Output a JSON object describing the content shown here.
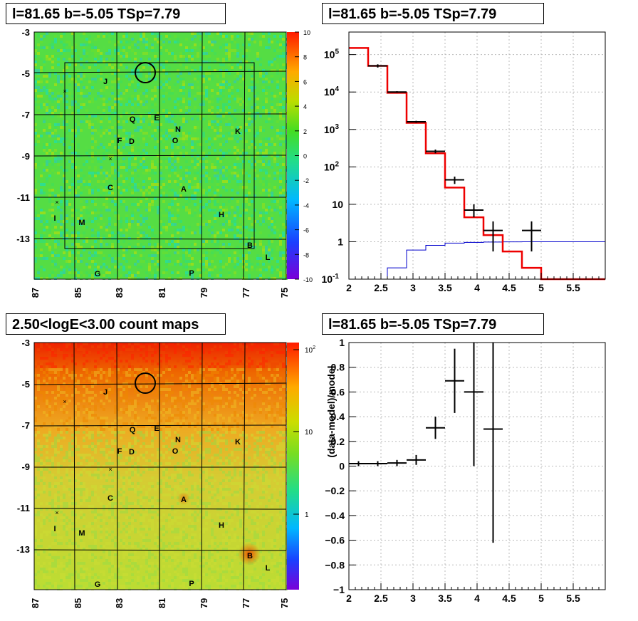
{
  "panels": {
    "tl_title": "l=81.65 b=-5.05 TSp=7.79",
    "tr_title": "l=81.65 b=-5.05 TSp=7.79",
    "bl_title": "2.50<logE<3.00 count maps",
    "br_title": "l=81.65 b=-5.05 TSp=7.79",
    "br_ylabel": "(data-model)/model"
  },
  "chart_data": [
    {
      "type": "heatmap",
      "title": "l=81.65 b=-5.05 TSp=7.79",
      "x_ticks": [
        "87",
        "85",
        "83",
        "81",
        "79",
        "77",
        "75"
      ],
      "y_ticks": [
        "-3",
        "-5",
        "-7",
        "-9",
        "-11",
        "-13"
      ],
      "xlim": [
        87,
        75
      ],
      "ylim": [
        -3,
        -15
      ],
      "colorbar_ticks": [
        "10",
        "8",
        "6",
        "4",
        "2",
        "0",
        "-2",
        "-4",
        "-6",
        "-8",
        "-10"
      ],
      "zlim": [
        -10,
        10
      ],
      "sources": [
        "J",
        "Q",
        "E",
        "N",
        "K",
        "F",
        "D",
        "O",
        "C",
        "A",
        "H",
        "I",
        "M",
        "B",
        "L",
        "G",
        "P"
      ],
      "colors": {
        "background": "#55dd44",
        "colormap": "rainbow"
      }
    },
    {
      "type": "line",
      "title": "l=81.65 b=-5.05 TSp=7.79",
      "yscale": "log",
      "xlim": [
        2,
        6
      ],
      "ylim": [
        0.1,
        400000
      ],
      "x_ticks": [
        "2",
        "2.5",
        "3",
        "3.5",
        "4",
        "4.5",
        "5",
        "5.5"
      ],
      "y_ticks": [
        "10^-1",
        "1",
        "10",
        "10^2",
        "10^3",
        "10^4",
        "10^5"
      ],
      "series": [
        {
          "color": "#ee0000",
          "bin_edges": [
            2,
            2.3,
            2.6,
            2.9,
            3.2,
            3.5,
            3.8,
            4.1,
            4.4,
            4.7,
            5.0,
            5.3,
            5.6,
            6.0
          ],
          "values": [
            150000,
            50000,
            9500,
            1500,
            230,
            28,
            4.5,
            1.5,
            0.55,
            0.2,
            0.1,
            0.1,
            0.1
          ]
        },
        {
          "color": "#0000cc",
          "bin_edges": [
            2,
            2.3,
            2.6,
            2.9,
            3.2,
            3.5,
            3.8,
            4.1,
            4.4,
            4.7,
            5.0,
            5.3,
            5.6,
            6.0
          ],
          "values": [
            0.01,
            0.01,
            0.2,
            0.6,
            0.8,
            0.92,
            0.96,
            0.98,
            0.99,
            1.0,
            1.0,
            1.0,
            1.0
          ]
        },
        {
          "color": "#000000",
          "x": [
            2.45,
            2.75,
            3.05,
            3.35,
            3.65,
            3.95,
            4.25,
            4.85
          ],
          "y": [
            50000,
            10000,
            1600,
            260,
            45,
            7,
            2,
            2
          ],
          "xerr": 0.15,
          "ylo": [
            45000,
            9500,
            1500,
            230,
            35,
            4.5,
            0.55,
            0.55
          ],
          "yhi": [
            55000,
            10500,
            1700,
            290,
            55,
            10,
            3.5,
            3.5
          ]
        }
      ]
    },
    {
      "type": "heatmap",
      "title": "2.50<logE<3.00 count maps",
      "x_ticks": [
        "87",
        "85",
        "83",
        "81",
        "79",
        "77",
        "75"
      ],
      "y_ticks": [
        "-3",
        "-5",
        "-7",
        "-9",
        "-11",
        "-13"
      ],
      "xlim": [
        87,
        75
      ],
      "ylim": [
        -3,
        -15
      ],
      "colorbar_ticks": [
        "10^2",
        "10",
        "1"
      ],
      "zscale": "log",
      "sources": [
        "J",
        "Q",
        "E",
        "N",
        "K",
        "F",
        "D",
        "O",
        "C",
        "A",
        "H",
        "I",
        "M",
        "B",
        "L",
        "G",
        "P"
      ],
      "colors": {
        "top": "#ee2a00",
        "middle": "#ee8800",
        "bottom": "#ccdd33"
      }
    },
    {
      "type": "scatter",
      "title": "l=81.65 b=-5.05 TSp=7.79",
      "ylabel": "(data-model)/model",
      "xlim": [
        2,
        6
      ],
      "ylim": [
        -1,
        1
      ],
      "x_ticks": [
        "2",
        "2.5",
        "3",
        "3.5",
        "4",
        "4.5",
        "5",
        "5.5"
      ],
      "y_ticks": [
        "-1",
        "-0.8",
        "-0.6",
        "-0.4",
        "-0.2",
        "0",
        "0.2",
        "0.4",
        "0.6",
        "0.8",
        "1"
      ],
      "x": [
        2.15,
        2.45,
        2.75,
        3.05,
        3.35,
        3.65,
        3.95,
        4.25
      ],
      "y": [
        0.02,
        0.02,
        0.025,
        0.05,
        0.31,
        0.69,
        0.6,
        0.3
      ],
      "xerr": 0.15,
      "yerr": [
        0.02,
        0.02,
        0.025,
        0.04,
        0.09,
        0.26,
        0.6,
        0.92
      ]
    }
  ]
}
